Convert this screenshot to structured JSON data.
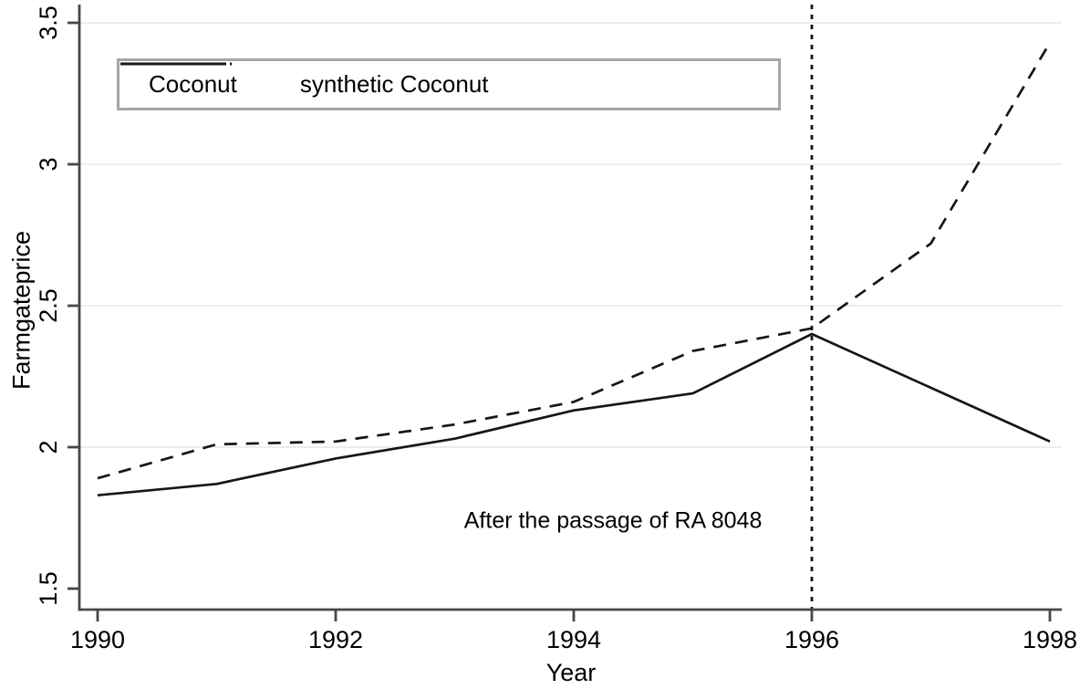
{
  "chart_data": {
    "type": "line",
    "title": "",
    "xlabel": "Year",
    "ylabel": "Farmgateprice",
    "x": [
      1990,
      1991,
      1992,
      1993,
      1994,
      1995,
      1996,
      1997,
      1998
    ],
    "series": [
      {
        "name": "Coconut",
        "style": "solid",
        "values": [
          1.83,
          1.87,
          1.96,
          2.03,
          2.13,
          2.19,
          2.4,
          2.21,
          2.02
        ]
      },
      {
        "name": "synthetic Coconut",
        "style": "dashed",
        "values": [
          1.89,
          2.01,
          2.02,
          2.08,
          2.16,
          2.34,
          2.42,
          2.72,
          3.43
        ]
      }
    ],
    "x_ticks": [
      1990,
      1992,
      1994,
      1996,
      1998
    ],
    "y_ticks": [
      1.5,
      2,
      2.5,
      3,
      3.5
    ],
    "y_tick_labels": [
      "1.5",
      "2",
      "2.5",
      "3",
      "3.5"
    ],
    "grid_y": [
      2,
      2.5,
      3,
      3.5
    ],
    "xlim": [
      1989.8,
      1998.1
    ],
    "ylim": [
      1.45,
      3.55
    ],
    "vline_x": 1996,
    "legend_position": "top-left",
    "annotation": {
      "text": "After the passage of RA 8048",
      "x": 1994.33,
      "y": 1.74
    },
    "grid": true,
    "colors": {
      "line": "#161616",
      "grid": "#e8eef1",
      "axis": "#474747",
      "annotation": "#6a6a6a",
      "legend_border": "#a6a6a6",
      "background": "#ffffff"
    }
  }
}
